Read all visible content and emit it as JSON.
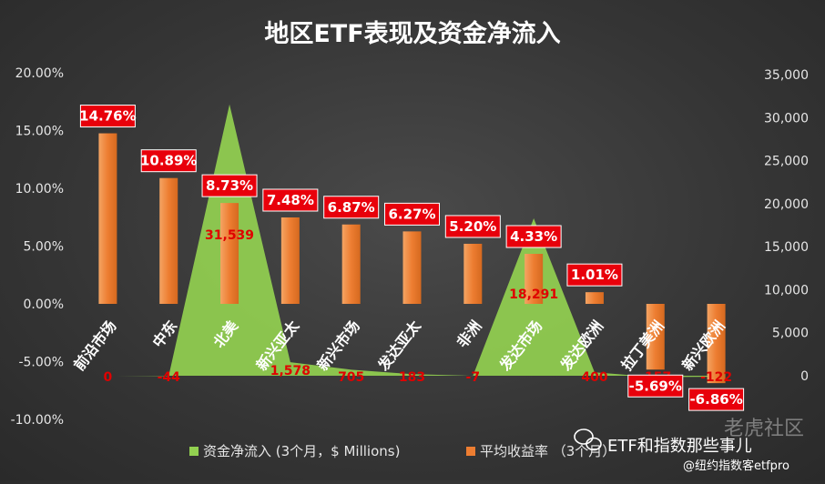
{
  "chart_data": {
    "type": "bar",
    "title": "地区ETF表现及资金净流入",
    "categories": [
      "前沿市场",
      "中东",
      "北美",
      "新兴亚太",
      "新兴市场",
      "发达亚太",
      "非洲",
      "发达市场",
      "发达欧洲",
      "拉丁美洲",
      "新兴欧洲"
    ],
    "series": [
      {
        "name": "平均收益率 （3个月）",
        "type": "bar",
        "axis": "left",
        "color": "#ed7d31",
        "values": [
          14.76,
          10.89,
          8.73,
          7.48,
          6.87,
          6.27,
          5.2,
          4.33,
          1.01,
          -5.69,
          -6.86
        ],
        "labels": [
          "14.76%",
          "10.89%",
          "8.73%",
          "7.48%",
          "6.87%",
          "6.27%",
          "5.20%",
          "4.33%",
          "1.01%",
          "-5.69%",
          "-6.86%"
        ]
      },
      {
        "name": "资金净流入 (3个月，$ Millions)",
        "type": "area",
        "axis": "right",
        "color": "#92d050",
        "values": [
          0,
          -44,
          31539,
          1578,
          705,
          183,
          -7,
          18291,
          400,
          -157,
          -122
        ],
        "labels": [
          "0",
          "-44",
          "31,539",
          "1,578",
          "705",
          "183",
          "-7",
          "18,291",
          "400",
          "-157",
          "-122"
        ]
      }
    ],
    "y_left": {
      "lim": [
        -10,
        20
      ],
      "ticks": [
        "20.00%",
        "15.00%",
        "10.00%",
        "5.00%",
        "0.00%",
        "-5.00%",
        "-10.00%"
      ],
      "tick_values": [
        20,
        15,
        10,
        5,
        0,
        -5,
        -10
      ]
    },
    "y_right": {
      "lim": [
        0,
        35000
      ],
      "ticks": [
        "35,000",
        "30,000",
        "25,000",
        "20,000",
        "15,000",
        "10,000",
        "5,000",
        "0"
      ],
      "tick_values": [
        35000,
        30000,
        25000,
        20000,
        15000,
        10000,
        5000,
        0
      ]
    },
    "legend_position": "bottom",
    "grid": false
  },
  "watermark": {
    "main": "ETF和指数那些事儿",
    "sub": "@纽约指数客etfpro",
    "ghost": "老虎社区"
  }
}
